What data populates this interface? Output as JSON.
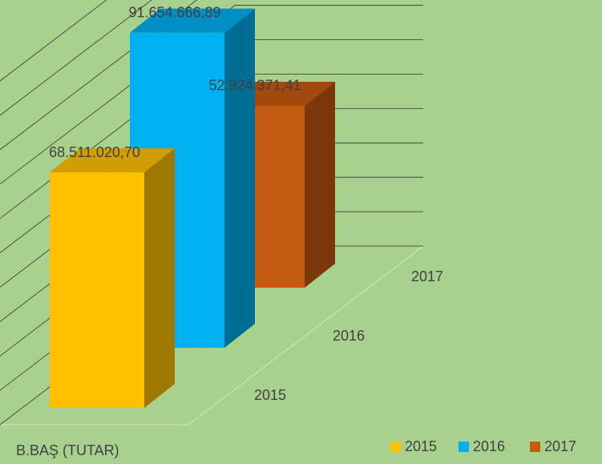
{
  "chart_data": {
    "type": "bar",
    "categories": [
      "B.BAŞ (TUTAR)"
    ],
    "series": [
      {
        "name": "2015",
        "color": "#ffc000",
        "values": [
          68511020.7
        ],
        "value_labels": [
          "68.511.020,70"
        ]
      },
      {
        "name": "2016",
        "color": "#00b0f0",
        "values": [
          91654666.89
        ],
        "value_labels": [
          "91.654.666,89"
        ]
      },
      {
        "name": "2017",
        "color": "#c55a11",
        "values": [
          52924371.41
        ],
        "value_labels": [
          "52.924.371,41"
        ]
      }
    ],
    "ylim": [
      0,
      100000000
    ],
    "yticks": [
      0,
      10000000,
      20000000,
      30000000,
      40000000,
      50000000,
      60000000,
      70000000,
      80000000,
      90000000,
      100000000
    ],
    "grid": true,
    "legend": "bottom-right"
  }
}
